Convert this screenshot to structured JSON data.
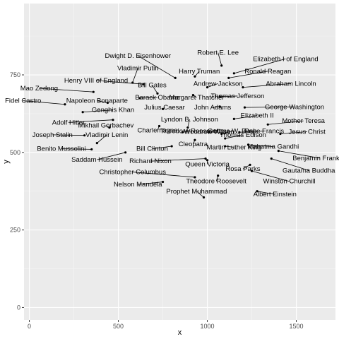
{
  "chart_data": {
    "type": "scatter",
    "xlabel": "x",
    "ylabel": "y",
    "xlim": [
      -30,
      1720
    ],
    "ylim": [
      -40,
      980
    ],
    "x_ticks": [
      0,
      500,
      1000,
      1500
    ],
    "y_ticks": [
      0,
      250,
      500,
      750
    ],
    "grid": true,
    "points": [
      {
        "name": "Dwight D. Eisenhower",
        "x": 820,
        "y": 740,
        "lx": 610,
        "ly": 805
      },
      {
        "name": "Robert E. Lee",
        "x": 1080,
        "y": 780,
        "lx": 1060,
        "ly": 815
      },
      {
        "name": "Elizabeth I of England",
        "x": 1150,
        "y": 755,
        "lx": 1440,
        "ly": 795
      },
      {
        "name": "Vladimir Putin",
        "x": 580,
        "y": 725,
        "lx": 610,
        "ly": 765
      },
      {
        "name": "Harry Truman",
        "x": 930,
        "y": 745,
        "lx": 955,
        "ly": 755
      },
      {
        "name": "Ronald Reagan",
        "x": 1120,
        "y": 740,
        "lx": 1340,
        "ly": 755
      },
      {
        "name": "Henry VIII of England",
        "x": 640,
        "y": 720,
        "lx": 375,
        "ly": 725
      },
      {
        "name": "Bill Gates",
        "x": 720,
        "y": 690,
        "lx": 690,
        "ly": 710
      },
      {
        "name": "Andrew Jackson",
        "x": 1000,
        "y": 710,
        "lx": 1060,
        "ly": 715
      },
      {
        "name": "Abraham Lincoln",
        "x": 1200,
        "y": 710,
        "lx": 1470,
        "ly": 715
      },
      {
        "name": "Mao Zedong",
        "x": 360,
        "y": 695,
        "lx": 55,
        "ly": 700
      },
      {
        "name": "Barack Obama",
        "x": 620,
        "y": 675,
        "lx": 720,
        "ly": 670
      },
      {
        "name": "Margaret Thatcher",
        "x": 920,
        "y": 685,
        "lx": 940,
        "ly": 670
      },
      {
        "name": "Thomas Jefferson",
        "x": 1070,
        "y": 680,
        "lx": 1170,
        "ly": 675
      },
      {
        "name": "Fidel Castro",
        "x": 200,
        "y": 655,
        "lx": -35,
        "ly": 660
      },
      {
        "name": "Napoleon Bonaparte",
        "x": 440,
        "y": 660,
        "lx": 380,
        "ly": 660
      },
      {
        "name": "George Washington",
        "x": 1210,
        "y": 645,
        "lx": 1490,
        "ly": 640
      },
      {
        "name": "Genghis Khan",
        "x": 300,
        "y": 630,
        "lx": 470,
        "ly": 630
      },
      {
        "name": "Julius Caesar",
        "x": 750,
        "y": 640,
        "lx": 760,
        "ly": 638
      },
      {
        "name": "John Adams",
        "x": 1070,
        "y": 648,
        "lx": 1030,
        "ly": 638
      },
      {
        "name": "Elizabeth II",
        "x": 1150,
        "y": 608,
        "lx": 1280,
        "ly": 612
      },
      {
        "name": "Mother Teresa",
        "x": 1340,
        "y": 590,
        "lx": 1540,
        "ly": 595
      },
      {
        "name": "Adolf Hitler",
        "x": 470,
        "y": 605,
        "lx": 220,
        "ly": 590
      },
      {
        "name": "Lyndon B. Johnson",
        "x": 890,
        "y": 580,
        "lx": 900,
        "ly": 600
      },
      {
        "name": "Mikhail Gorbachev",
        "x": 450,
        "y": 580,
        "lx": 430,
        "ly": 580
      },
      {
        "name": "Charlemagne",
        "x": 730,
        "y": 585,
        "lx": 720,
        "ly": 565
      },
      {
        "name": "Theodore Roosevelt",
        "x": 860,
        "y": 565,
        "lx": 905,
        "ly": 562
      },
      {
        "name": "Woodrow Wilson",
        "x": 1010,
        "y": 565,
        "lx": 1010,
        "ly": 560
      },
      {
        "name": "George W. Bush",
        "x": 1080,
        "y": 560,
        "lx": 1140,
        "ly": 562
      },
      {
        "name": "Pope Francis",
        "x": 1180,
        "y": 565,
        "lx": 1320,
        "ly": 562
      },
      {
        "name": "Jesus Christ",
        "x": 1410,
        "y": 560,
        "lx": 1560,
        "ly": 560
      },
      {
        "name": "Joseph Stalin",
        "x": 310,
        "y": 555,
        "lx": 130,
        "ly": 550
      },
      {
        "name": "Vladimir Lenin",
        "x": 380,
        "y": 530,
        "lx": 435,
        "ly": 550
      },
      {
        "name": "Thomas Edison",
        "x": 1100,
        "y": 545,
        "lx": 1200,
        "ly": 550
      },
      {
        "name": "Cleopatra",
        "x": 930,
        "y": 540,
        "lx": 920,
        "ly": 520
      },
      {
        "name": "Martin Luther King",
        "x": 1100,
        "y": 520,
        "lx": 1150,
        "ly": 510
      },
      {
        "name": "Mahatma Gandhi",
        "x": 1230,
        "y": 525,
        "lx": 1370,
        "ly": 512
      },
      {
        "name": "Benito Mussolini",
        "x": 350,
        "y": 510,
        "lx": 180,
        "ly": 505
      },
      {
        "name": "Bill Clinton",
        "x": 800,
        "y": 520,
        "lx": 690,
        "ly": 505
      },
      {
        "name": "Benjamin Franklin",
        "x": 1400,
        "y": 505,
        "lx": 1630,
        "ly": 475
      },
      {
        "name": "Saddam Hussein",
        "x": 540,
        "y": 500,
        "lx": 380,
        "ly": 470
      },
      {
        "name": "Richard Nixon",
        "x": 990,
        "y": 480,
        "lx": 680,
        "ly": 465
      },
      {
        "name": "Queen Victoria",
        "x": 1000,
        "y": 475,
        "lx": 1000,
        "ly": 455
      },
      {
        "name": "Gautama Buddha",
        "x": 1360,
        "y": 480,
        "lx": 1570,
        "ly": 435
      },
      {
        "name": "Rosa Parks",
        "x": 1240,
        "y": 460,
        "lx": 1200,
        "ly": 440
      },
      {
        "name": "Christopher Columbus",
        "x": 930,
        "y": 420,
        "lx": 580,
        "ly": 430
      },
      {
        "name": "Winston Churchill",
        "x": 1250,
        "y": 440,
        "lx": 1460,
        "ly": 400
      },
      {
        "name": "Theodore Roosevelt",
        "x": 1060,
        "y": 425,
        "lx": 1050,
        "ly": 400
      },
      {
        "name": "Nelson Mandela",
        "x": 750,
        "y": 405,
        "lx": 610,
        "ly": 390
      },
      {
        "name": "Prophet Muhammad",
        "x": 980,
        "y": 355,
        "lx": 940,
        "ly": 368
      },
      {
        "name": "Albert Einstein",
        "x": 1280,
        "y": 375,
        "lx": 1380,
        "ly": 358
      }
    ]
  }
}
